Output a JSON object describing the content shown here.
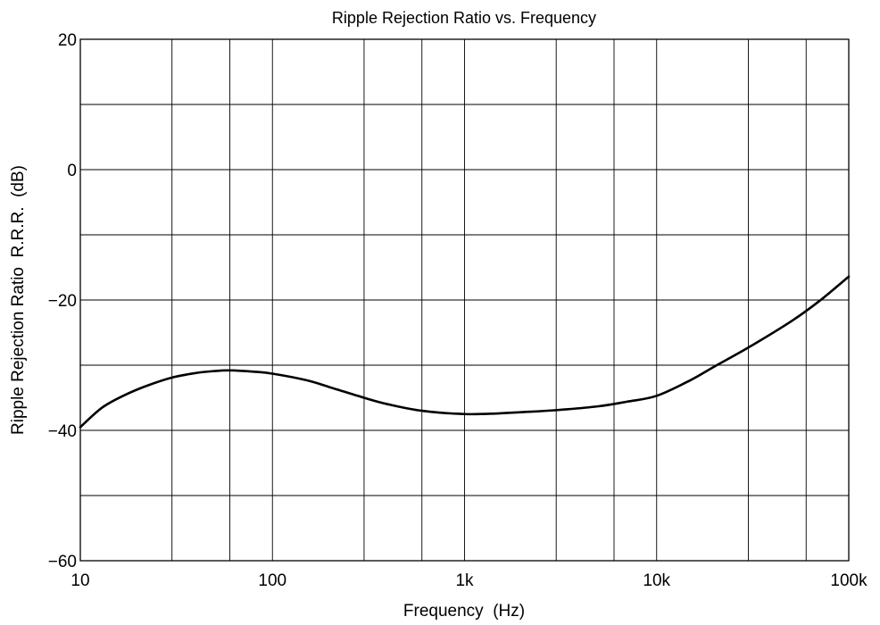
{
  "chart_data": {
    "type": "line",
    "title": "Ripple Rejection Ratio vs. Frequency",
    "xlabel": "Frequency  (Hz)",
    "ylabel": "Ripple Rejection Ratio  R.R.R.  (dB)",
    "xscale": "log",
    "xlim": [
      10,
      100000
    ],
    "ylim": [
      -60,
      20
    ],
    "grid": true,
    "x_ticks": [
      {
        "value": 10,
        "label": "10"
      },
      {
        "value": 100,
        "label": "100"
      },
      {
        "value": 1000,
        "label": "1k"
      },
      {
        "value": 10000,
        "label": "10k"
      },
      {
        "value": 100000,
        "label": "100k"
      }
    ],
    "x_minor_grid": [
      30,
      60,
      300,
      600,
      3000,
      6000,
      30000,
      60000
    ],
    "y_ticks": [
      {
        "value": 20,
        "label": "20"
      },
      {
        "value": 0,
        "label": "0"
      },
      {
        "value": -20,
        "label": "−20"
      },
      {
        "value": -40,
        "label": "−40"
      },
      {
        "value": -60,
        "label": "−60"
      }
    ],
    "y_minor_grid": [
      10,
      -10,
      -30,
      -50
    ],
    "series": [
      {
        "color": "#000000",
        "points": [
          [
            10,
            -39.5
          ],
          [
            13,
            -36.5
          ],
          [
            17,
            -34.6
          ],
          [
            22,
            -33.2
          ],
          [
            30,
            -31.9
          ],
          [
            40,
            -31.2
          ],
          [
            50,
            -30.9
          ],
          [
            60,
            -30.8
          ],
          [
            80,
            -31.0
          ],
          [
            100,
            -31.3
          ],
          [
            150,
            -32.3
          ],
          [
            200,
            -33.4
          ],
          [
            300,
            -35.0
          ],
          [
            400,
            -36.0
          ],
          [
            600,
            -37.0
          ],
          [
            1000,
            -37.5
          ],
          [
            1500,
            -37.4
          ],
          [
            2000,
            -37.2
          ],
          [
            3000,
            -36.9
          ],
          [
            5000,
            -36.3
          ],
          [
            7000,
            -35.6
          ],
          [
            10000,
            -34.7
          ],
          [
            15000,
            -32.3
          ],
          [
            20000,
            -30.2
          ],
          [
            30000,
            -27.3
          ],
          [
            50000,
            -23.3
          ],
          [
            70000,
            -20.2
          ],
          [
            100000,
            -16.4
          ]
        ]
      }
    ]
  }
}
